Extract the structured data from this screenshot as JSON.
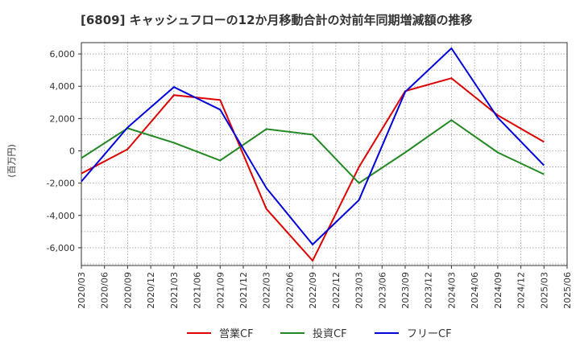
{
  "chart_data": {
    "type": "line",
    "title": "[6809]  キャッシュフローの12か月移動合計の対前年同期増減額の推移",
    "ylabel": "(百万円)",
    "xlabel": "",
    "ylim": [
      -7100,
      6700
    ],
    "yticks": [
      6000,
      4000,
      2000,
      0,
      -2000,
      -4000,
      -6000
    ],
    "ytick_labels": [
      "6,000",
      "4,000",
      "2,000",
      "0",
      "-2,000",
      "-4,000",
      "-6,000"
    ],
    "categories": [
      "2020/03",
      "2020/06",
      "2020/09",
      "2020/12",
      "2021/03",
      "2021/06",
      "2021/09",
      "2021/12",
      "2022/03",
      "2022/06",
      "2022/09",
      "2022/12",
      "2023/03",
      "2023/06",
      "2023/09",
      "2023/12",
      "2024/03",
      "2024/06",
      "2024/09",
      "2024/12",
      "2025/03",
      "2025/06"
    ],
    "series": [
      {
        "name": "営業CF",
        "color": "#dd0000",
        "x": [
          "2020/03",
          "2020/09",
          "2021/03",
          "2021/09",
          "2022/03",
          "2022/09",
          "2023/03",
          "2023/09",
          "2024/03",
          "2024/09",
          "2025/03"
        ],
        "values": [
          -1400,
          100,
          3450,
          3150,
          -3600,
          -6800,
          -1000,
          3700,
          4500,
          2200,
          550
        ]
      },
      {
        "name": "投資CF",
        "color": "#228822",
        "x": [
          "2020/03",
          "2020/09",
          "2021/03",
          "2021/09",
          "2022/03",
          "2022/09",
          "2023/03",
          "2023/09",
          "2024/03",
          "2024/09",
          "2025/03"
        ],
        "values": [
          -450,
          1400,
          500,
          -600,
          1350,
          1000,
          -2000,
          -100,
          1900,
          -100,
          -1450
        ]
      },
      {
        "name": "フリーCF",
        "color": "#0000dd",
        "x": [
          "2020/03",
          "2020/09",
          "2021/03",
          "2021/09",
          "2022/03",
          "2022/09",
          "2023/03",
          "2023/09",
          "2024/03",
          "2024/09",
          "2025/03"
        ],
        "values": [
          -1900,
          1450,
          3950,
          2550,
          -2300,
          -5800,
          -3050,
          3650,
          6350,
          2050,
          -900
        ]
      }
    ],
    "grid": true,
    "legend": "bottom"
  }
}
